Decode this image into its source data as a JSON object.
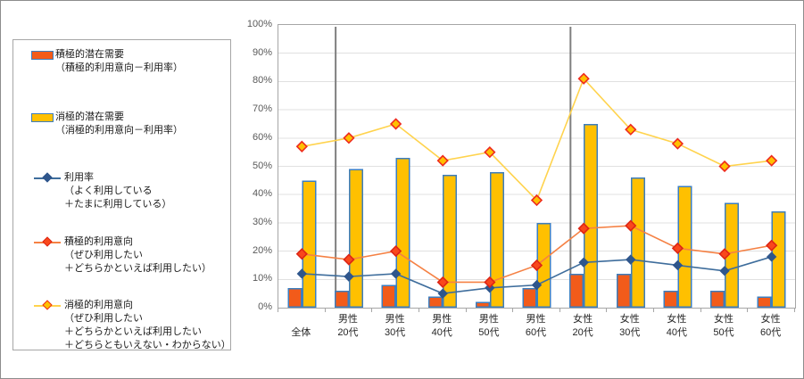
{
  "legend": {
    "items": [
      {
        "swatch": "bar-active",
        "lines": [
          "積極的潜在需要",
          "（積極的利用意向－利用率）"
        ]
      },
      {
        "swatch": "bar-passive",
        "lines": [
          "消極的潜在需要",
          "（消極的利用意向－利用率）"
        ]
      },
      {
        "swatch": "line-usage",
        "lines": [
          "利用率",
          "（よく利用している",
          "＋たまに利用している）"
        ]
      },
      {
        "swatch": "line-active-intent",
        "lines": [
          "積極的利用意向",
          "（ぜひ利用したい",
          "＋どちらかといえば利用したい）"
        ]
      },
      {
        "swatch": "line-passive-intent",
        "lines": [
          "消極的利用意向",
          "（ぜひ利用したい",
          "＋どちらかといえば利用したい",
          "＋どちらともいえない・わからない）"
        ]
      }
    ]
  },
  "chart_data": {
    "type": "bar+line combo",
    "categories": [
      "全体",
      "男性20代",
      "男性30代",
      "男性40代",
      "男性50代",
      "男性60代",
      "女性20代",
      "女性30代",
      "女性40代",
      "女性50代",
      "女性60代"
    ],
    "category_label_lines": [
      [
        "全体"
      ],
      [
        "男性",
        "20代"
      ],
      [
        "男性",
        "30代"
      ],
      [
        "男性",
        "40代"
      ],
      [
        "男性",
        "50代"
      ],
      [
        "男性",
        "60代"
      ],
      [
        "女性",
        "20代"
      ],
      [
        "女性",
        "30代"
      ],
      [
        "女性",
        "40代"
      ],
      [
        "女性",
        "50代"
      ],
      [
        "女性",
        "60代"
      ]
    ],
    "bar_series": [
      {
        "name": "積極的潜在需要（積極的利用意向－利用率）",
        "values": [
          7,
          6,
          8,
          4,
          2,
          7,
          12,
          12,
          6,
          6,
          4
        ],
        "fill": "#f25b1a",
        "border": "#3c7ebf"
      },
      {
        "name": "消極的潜在需要（消極的利用意向－利用率）",
        "values": [
          45,
          49,
          53,
          47,
          48,
          30,
          65,
          46,
          43,
          37,
          34
        ],
        "fill": "#ffc000",
        "border": "#3c7ebf"
      }
    ],
    "line_series": [
      {
        "name": "利用率（よく利用している＋たまに利用している）",
        "values": [
          12,
          11,
          12,
          5,
          7,
          8,
          16,
          17,
          15,
          13,
          18
        ],
        "stroke": "#3e6d9c",
        "marker_fill": "#2f568c",
        "marker_stroke": "#2f568c"
      },
      {
        "name": "積極的利用意向（ぜひ利用したい＋どちらかといえば利用したい）",
        "values": [
          19,
          17,
          20,
          9,
          9,
          15,
          28,
          29,
          21,
          19,
          22
        ],
        "stroke": "#f58144",
        "marker_fill": "#f9481c",
        "marker_stroke": "#dd2515"
      },
      {
        "name": "消極的利用意向（ぜひ利用したい＋どちらかといえば利用したい＋どちらともいえない・わからない）",
        "values": [
          57,
          60,
          65,
          52,
          55,
          38,
          81,
          63,
          58,
          50,
          52
        ],
        "stroke": "#ffd34d",
        "marker_fill": "#ffc000",
        "marker_stroke": "#ee2a1e"
      }
    ],
    "ylim": [
      0,
      100
    ],
    "ytick_step": 10,
    "ytick_labels": [
      "0%",
      "10%",
      "20%",
      "30%",
      "40%",
      "50%",
      "60%",
      "70%",
      "80%",
      "90%",
      "100%"
    ],
    "separators_after_category": [
      0,
      5
    ],
    "grid": "horizontal",
    "legend_position": "left",
    "colors": {
      "gridline": "#e0e0e0",
      "plot_border": "#a6a6a6",
      "separator": "#7f7f7f",
      "axis_text": "#595959",
      "category_text": "#262626"
    }
  }
}
